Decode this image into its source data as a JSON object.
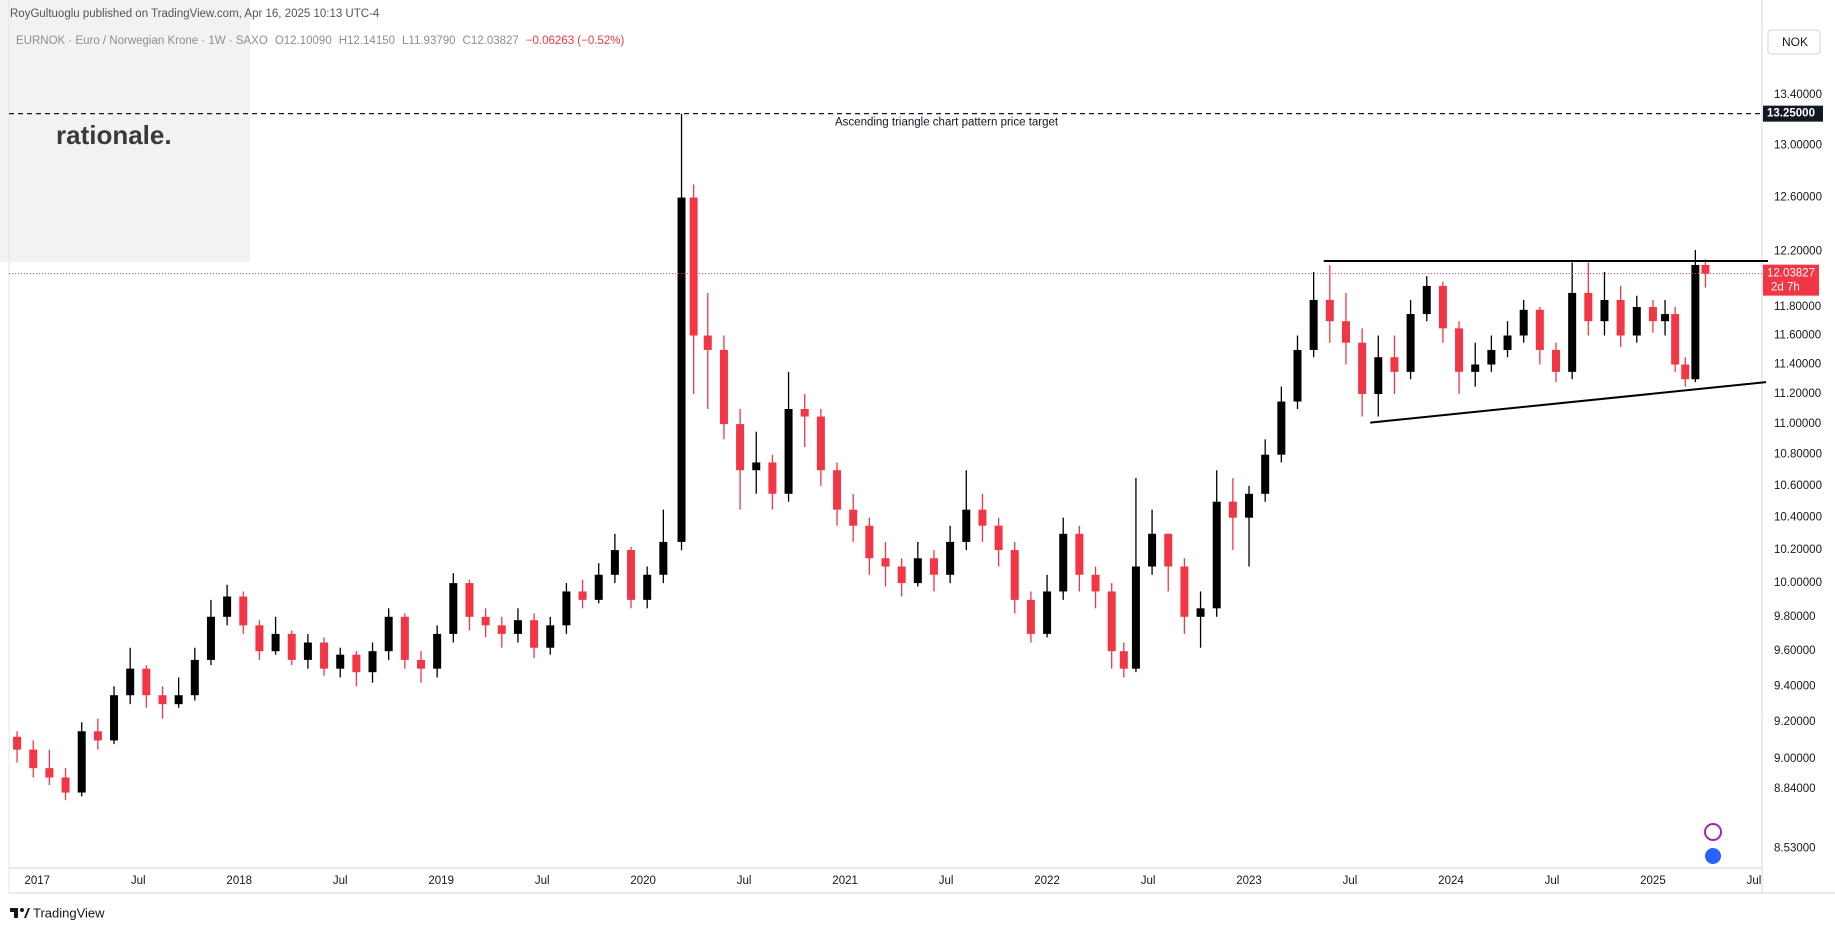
{
  "header": {
    "publisher": "RoyGultuoglu published on TradingView.com, Apr 16, 2025 10:13 UTC-4",
    "legend": [
      "EURNOK · Euro / Norwegian Krone · 1W · SAXO",
      "O12.10090",
      "H12.14150",
      "L11.93790",
      "C12.03827",
      "−0.06263 (−0.52%)"
    ],
    "watermark": "rationale.",
    "currency": "NOK"
  },
  "footer": {
    "brand": "TradingView"
  },
  "chart_data": {
    "type": "candlestick",
    "log_scale": true,
    "grid": false,
    "up_color": "#000000",
    "down_color": "#f23645",
    "x": [
      2016.9,
      2016.98,
      2017.06,
      2017.14,
      2017.22,
      2017.3,
      2017.38,
      2017.46,
      2017.54,
      2017.62,
      2017.7,
      2017.78,
      2017.86,
      2017.94,
      2018.02,
      2018.1,
      2018.18,
      2018.26,
      2018.34,
      2018.42,
      2018.5,
      2018.58,
      2018.66,
      2018.74,
      2018.82,
      2018.9,
      2018.98,
      2019.06,
      2019.14,
      2019.22,
      2019.3,
      2019.38,
      2019.46,
      2019.54,
      2019.62,
      2019.7,
      2019.78,
      2019.86,
      2019.94,
      2020.02,
      2020.1,
      2020.19,
      2020.25,
      2020.32,
      2020.4,
      2020.48,
      2020.56,
      2020.64,
      2020.72,
      2020.8,
      2020.88,
      2020.96,
      2021.04,
      2021.12,
      2021.2,
      2021.28,
      2021.36,
      2021.44,
      2021.52,
      2021.6,
      2021.68,
      2021.76,
      2021.84,
      2021.92,
      2022.0,
      2022.08,
      2022.16,
      2022.24,
      2022.32,
      2022.38,
      2022.44,
      2022.52,
      2022.6,
      2022.68,
      2022.76,
      2022.84,
      2022.92,
      2023.0,
      2023.08,
      2023.16,
      2023.24,
      2023.32,
      2023.4,
      2023.48,
      2023.56,
      2023.64,
      2023.72,
      2023.8,
      2023.88,
      2023.96,
      2024.04,
      2024.12,
      2024.2,
      2024.28,
      2024.36,
      2024.44,
      2024.52,
      2024.6,
      2024.68,
      2024.76,
      2024.84,
      2024.92,
      2025.0,
      2025.06,
      2025.11,
      2025.16,
      2025.21,
      2025.26
    ],
    "open": [
      9.12,
      9.05,
      8.95,
      8.9,
      8.82,
      9.15,
      9.1,
      9.35,
      9.5,
      9.35,
      9.3,
      9.35,
      9.55,
      9.8,
      9.92,
      9.75,
      9.6,
      9.7,
      9.55,
      9.65,
      9.5,
      9.58,
      9.48,
      9.6,
      9.8,
      9.55,
      9.5,
      9.7,
      10.0,
      9.8,
      9.75,
      9.7,
      9.78,
      9.62,
      9.75,
      9.95,
      9.9,
      10.05,
      10.2,
      9.9,
      10.05,
      10.25,
      12.6,
      11.6,
      11.5,
      11.0,
      10.7,
      10.75,
      10.55,
      11.1,
      11.05,
      10.7,
      10.45,
      10.35,
      10.15,
      10.1,
      10.0,
      10.15,
      10.05,
      10.25,
      10.45,
      10.35,
      10.2,
      9.9,
      9.7,
      9.95,
      10.3,
      10.05,
      9.95,
      9.6,
      9.5,
      10.1,
      10.3,
      10.1,
      9.8,
      9.85,
      10.5,
      10.4,
      10.55,
      10.8,
      11.15,
      11.5,
      11.85,
      11.7,
      11.55,
      11.2,
      11.45,
      11.35,
      11.75,
      11.95,
      11.65,
      11.35,
      11.4,
      11.5,
      11.6,
      11.78,
      11.5,
      11.35,
      11.9,
      11.7,
      11.85,
      11.6,
      11.8,
      11.7,
      11.75,
      11.4,
      11.3,
      12.1009
    ],
    "high": [
      9.15,
      9.1,
      9.05,
      8.95,
      9.2,
      9.22,
      9.4,
      9.62,
      9.52,
      9.4,
      9.45,
      9.62,
      9.9,
      9.99,
      9.95,
      9.78,
      9.8,
      9.72,
      9.7,
      9.68,
      9.62,
      9.6,
      9.65,
      9.85,
      9.82,
      9.6,
      9.75,
      10.06,
      10.02,
      9.85,
      9.8,
      9.85,
      9.82,
      9.8,
      10.0,
      10.02,
      10.12,
      10.3,
      10.22,
      10.1,
      10.45,
      13.25,
      12.7,
      11.9,
      11.6,
      11.1,
      10.95,
      10.8,
      11.35,
      11.2,
      11.1,
      10.75,
      10.55,
      10.4,
      10.25,
      10.15,
      10.25,
      10.2,
      10.35,
      10.7,
      10.55,
      10.4,
      10.25,
      9.95,
      10.05,
      10.4,
      10.35,
      10.1,
      10.0,
      9.65,
      10.65,
      10.45,
      10.3,
      10.15,
      9.95,
      10.7,
      10.65,
      10.6,
      10.9,
      11.25,
      11.6,
      12.05,
      12.1,
      11.9,
      11.65,
      11.6,
      11.6,
      11.85,
      12.02,
      11.98,
      11.7,
      11.55,
      11.6,
      11.7,
      11.85,
      11.8,
      11.55,
      12.12,
      12.12,
      12.05,
      11.95,
      11.88,
      11.85,
      11.85,
      11.8,
      11.45,
      12.21,
      12.1415
    ],
    "low": [
      8.98,
      8.9,
      8.86,
      8.78,
      8.8,
      9.05,
      9.08,
      9.3,
      9.28,
      9.22,
      9.28,
      9.32,
      9.52,
      9.75,
      9.7,
      9.55,
      9.58,
      9.52,
      9.5,
      9.46,
      9.45,
      9.4,
      9.42,
      9.55,
      9.5,
      9.42,
      9.45,
      9.65,
      9.72,
      9.68,
      9.62,
      9.65,
      9.56,
      9.58,
      9.7,
      9.85,
      9.88,
      10.0,
      9.85,
      9.85,
      10.0,
      10.2,
      11.2,
      11.1,
      10.9,
      10.45,
      10.55,
      10.45,
      10.5,
      10.85,
      10.6,
      10.35,
      10.25,
      10.05,
      9.98,
      9.92,
      9.98,
      9.95,
      10.0,
      10.2,
      10.25,
      10.1,
      9.82,
      9.65,
      9.68,
      9.9,
      9.95,
      9.85,
      9.5,
      9.45,
      9.48,
      10.05,
      9.95,
      9.7,
      9.62,
      9.8,
      10.2,
      10.1,
      10.5,
      10.75,
      11.1,
      11.45,
      11.55,
      11.4,
      11.05,
      11.05,
      11.2,
      11.3,
      11.7,
      11.55,
      11.2,
      11.25,
      11.35,
      11.45,
      11.55,
      11.4,
      11.28,
      11.3,
      11.6,
      11.6,
      11.52,
      11.55,
      11.62,
      11.6,
      11.35,
      11.25,
      11.28,
      11.9379
    ],
    "close": [
      9.05,
      8.95,
      8.9,
      8.82,
      9.15,
      9.1,
      9.35,
      9.5,
      9.35,
      9.3,
      9.35,
      9.55,
      9.8,
      9.92,
      9.75,
      9.6,
      9.7,
      9.55,
      9.65,
      9.5,
      9.58,
      9.48,
      9.6,
      9.8,
      9.55,
      9.5,
      9.7,
      10.0,
      9.8,
      9.75,
      9.7,
      9.78,
      9.62,
      9.75,
      9.95,
      9.9,
      10.05,
      10.2,
      9.9,
      10.05,
      10.25,
      12.6,
      11.6,
      11.5,
      11.0,
      10.7,
      10.75,
      10.55,
      11.1,
      11.05,
      10.7,
      10.45,
      10.35,
      10.15,
      10.1,
      10.0,
      10.15,
      10.05,
      10.25,
      10.45,
      10.35,
      10.2,
      9.9,
      9.7,
      9.95,
      10.3,
      10.05,
      9.95,
      9.6,
      9.5,
      10.1,
      10.3,
      10.1,
      9.8,
      9.85,
      10.5,
      10.4,
      10.55,
      10.8,
      11.15,
      11.5,
      11.85,
      11.7,
      11.55,
      11.2,
      11.45,
      11.35,
      11.75,
      11.95,
      11.65,
      11.35,
      11.4,
      11.5,
      11.6,
      11.78,
      11.5,
      11.35,
      11.9,
      11.7,
      11.85,
      11.6,
      11.8,
      11.7,
      11.75,
      11.4,
      11.3,
      12.1009,
      12.03827
    ],
    "xlim": [
      2016.86,
      2025.54
    ],
    "xticks": [
      2017,
      {
        "value": 2017.5,
        "label": "Jul"
      },
      2018,
      {
        "value": 2018.5,
        "label": "Jul"
      },
      2019,
      {
        "value": 2019.5,
        "label": "Jul"
      },
      2020,
      {
        "value": 2020.5,
        "label": "Jul"
      },
      2021,
      {
        "value": 2021.5,
        "label": "Jul"
      },
      2022,
      {
        "value": 2022.5,
        "label": "Jul"
      },
      2023,
      {
        "value": 2023.5,
        "label": "Jul"
      },
      2024,
      {
        "value": 2024.5,
        "label": "Jul"
      },
      2025,
      {
        "value": 2025.5,
        "label": "Jul"
      }
    ],
    "ylim": [
      8.43,
      13.99
    ],
    "yticks": [
      {
        "value": 13.4,
        "label": "13.40000"
      },
      {
        "value": 13.0,
        "label": "13.00000"
      },
      {
        "value": 12.6,
        "label": "12.60000"
      },
      {
        "value": 12.2,
        "label": "12.20000"
      },
      {
        "value": 11.8,
        "label": "11.80000"
      },
      {
        "value": 11.6,
        "label": "11.60000"
      },
      {
        "value": 11.4,
        "label": "11.40000"
      },
      {
        "value": 11.2,
        "label": "11.20000"
      },
      {
        "value": 11.0,
        "label": "11.00000"
      },
      {
        "value": 10.8,
        "label": "10.80000"
      },
      {
        "value": 10.6,
        "label": "10.60000"
      },
      {
        "value": 10.4,
        "label": "10.40000"
      },
      {
        "value": 10.2,
        "label": "10.20000"
      },
      {
        "value": 10.0,
        "label": "10.00000"
      },
      {
        "value": 9.8,
        "label": "9.80000"
      },
      {
        "value": 9.6,
        "label": "9.60000"
      },
      {
        "value": 9.4,
        "label": "9.40000"
      },
      {
        "value": 9.2,
        "label": "9.20000"
      },
      {
        "value": 9.0,
        "label": "9.00000"
      },
      {
        "value": 8.84,
        "label": "8.84000"
      },
      {
        "value": 8.53,
        "label": "8.53000"
      }
    ],
    "target": {
      "value": 13.25,
      "label": "13.25000"
    },
    "target_annotation": "Ascending triangle chart pattern price target",
    "target_annotation_x": 2020.95,
    "last_price": 12.03827,
    "countdown": "2d 7h",
    "trendlines": [
      {
        "x": [
          2023.37,
          2025.57
        ],
        "y": [
          12.13,
          12.13
        ]
      },
      {
        "x": [
          2023.6,
          2025.56
        ],
        "y": [
          11.01,
          11.28
        ]
      }
    ]
  }
}
